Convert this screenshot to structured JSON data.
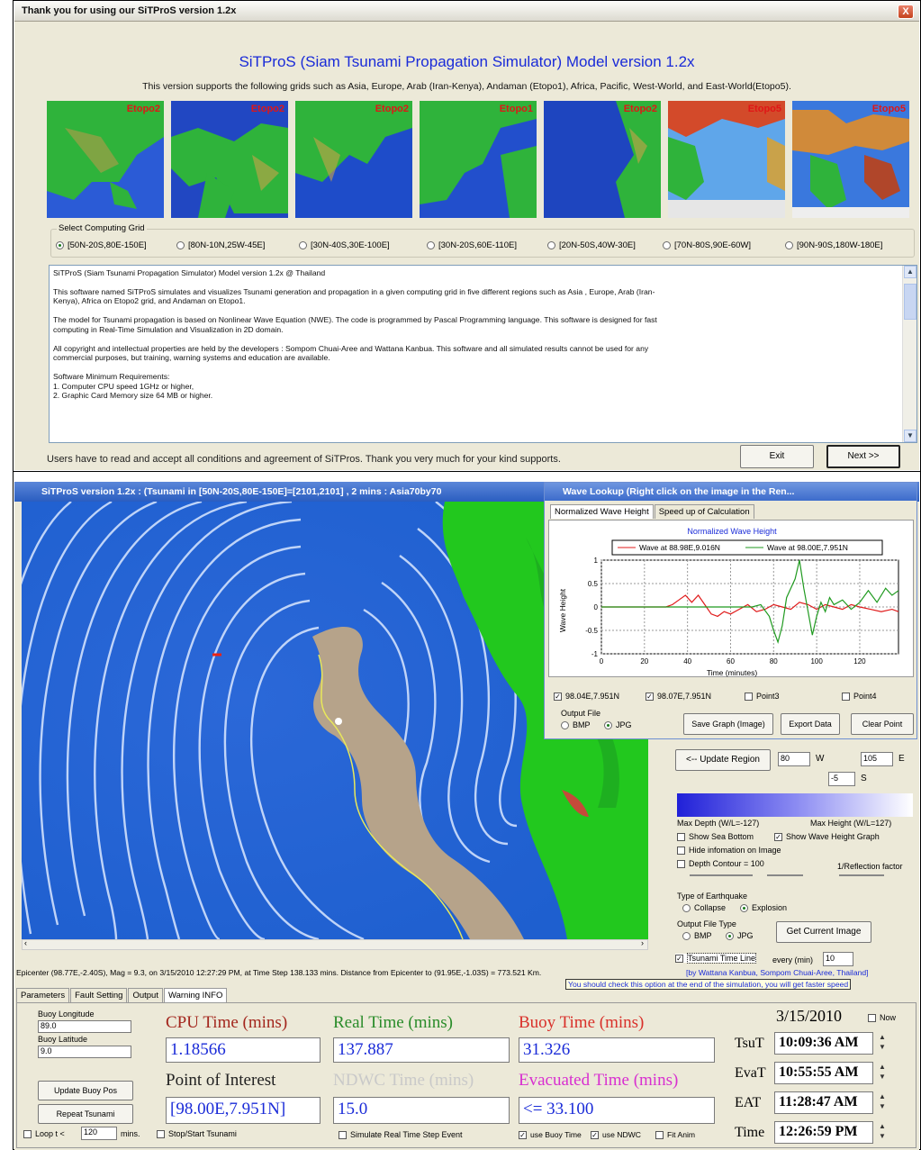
{
  "dialog": {
    "title": "Thank you for using our SiTProS version 1.2x",
    "close": "X",
    "heading": "SiTProS (Siam Tsunami Propagation Simulator) Model version 1.2x",
    "subheading": "This version supports the following grids such as Asia, Europe, Arab (Iran-Kenya), Andaman (Etopo1), Africa, Pacific, West-World, and East-World(Etopo5).",
    "thumbnails": [
      "Etopo2",
      "Etopo2",
      "Etopo2",
      "Etopo1",
      "Etopo2",
      "Etopo5",
      "Etopo5"
    ],
    "grid_group_label": "Select Computing Grid",
    "grids": [
      "[50N-20S,80E-150E]",
      "[80N-10N,25W-45E]",
      "[30N-40S,30E-100E]",
      "[30N-20S,60E-110E]",
      "[20N-50S,40W-30E]",
      "[70N-80S,90E-60W]",
      "[90N-90S,180W-180E]"
    ],
    "selected_grid": 0,
    "license_text": [
      "SiTProS (Siam Tsunami Propagation Simulator) Model version 1.2x @ Thailand",
      "This software named SiTProS simulates and visualizes Tsunami generation and propagation in a given computing grid in five different regions such as Asia , Europe, Arab (Iran-Kenya), Africa on Etopo2 grid, and Andaman on Etopo1.",
      "The model for Tsunami propagation is based on Nonlinear Wave Equation (NWE). The code is programmed by Pascal Programming language. This software is designed for fast computing in Real-Time Simulation and Visualization in 2D domain.",
      "All copyright and intellectual properties are held by the developers : Sompom Chuai-Aree and Wattana Kanbua. This software and all simulated results cannot be used for any commercial purposes, but training, warning systems and education are available.",
      "Software Minimum Requirements:\n1. Computer CPU speed 1GHz or higher,\n2. Graphic Card Memory size 64 MB or higher."
    ],
    "footer": "Users have to read and accept all conditions and agreement of SiTPros. Thank you very much for your kind supports.",
    "exit_label": "Exit",
    "next_label": "Next >>"
  },
  "app": {
    "title": "SiTProS version 1.2x : (Tsunami in [50N-20S,80E-150E]=[2101,2101] , 2 mins : Asia70by70",
    "status": "Epicenter (98.77E,-2.40S), Mag = 9.3, on 3/15/2010 12:27:29 PM, at Time Step 138.133 mins. Distance from Epicenter to (91.95E,-1.03S) = 773.521 Km.",
    "credits": "[by Wattana Kanbua, Sompom Chuai-Aree, Thailand]",
    "tip": "You should check this option at the end of the simulation, you will get faster speed",
    "tabs": [
      "Parameters",
      "Fault Setting",
      "Output",
      "Warning INFO"
    ],
    "buoy_longitude_label": "Buoy Longitude",
    "buoy_longitude": "89.0",
    "buoy_latitude_label": "Buoy Latitude",
    "buoy_latitude": "9.0",
    "update_buoy": "Update Buoy Pos",
    "repeat_tsunami": "Repeat Tsunami",
    "loop_label": "Loop t <",
    "loop_value": "120",
    "loop_unit": "mins.",
    "cpu_label": "CPU Time (mins)",
    "cpu_value": "1.18566",
    "real_label": "Real Time (mins)",
    "real_value": "137.887",
    "buoy_label": "Buoy Time (mins)",
    "buoy_value": "31.326",
    "poi_label": "Point of Interest",
    "poi_value": "[98.00E,7.951N]",
    "ndwc_label": "NDWC Time (mins)",
    "ndwc_value": "15.0",
    "evac_label": "Evacuated Time (mins)",
    "evac_value": "<= 33.100",
    "date": "3/15/2010",
    "now_label": "Now",
    "tsut_label": "TsuT",
    "tsut": "10:09:36 AM",
    "evat_label": "EvaT",
    "evat": "10:55:55 AM",
    "eat_label": "EAT",
    "eat": "11:28:47 AM",
    "time_label": "Time",
    "time": "12:26:59 PM",
    "stop_start": "Stop/Start Tsunami",
    "simulate_rt": "Simulate Real Time Step Event",
    "use_buoy": "use Buoy Time",
    "use_ndwc": "use NDWC",
    "fit_anim": "Fit Anim",
    "update_region": "<-- Update Region",
    "region_w_value": "80",
    "region_w": "W",
    "region_e_value": "105",
    "region_e": "E",
    "region_s_value": "-5",
    "region_s": "S",
    "max_depth": "Max Depth (W/L=-127)",
    "max_height": "Max Height (W/L=127)",
    "show_sea_bottom": "Show Sea Bottom",
    "show_wave_graph": "Show Wave Height Graph",
    "hide_info": "Hide infomation on Image",
    "depth_contour": "Depth Contour = 100",
    "reflection": "1/Reflection factor",
    "eq_type_label": "Type of Earthquake",
    "collapse": "Collapse",
    "explosion": "Explosion",
    "out_type_label": "Output File Type",
    "bmp": "BMP",
    "jpg": "JPG",
    "get_image": "Get Current Image",
    "time_line": "Tsunami Time Line",
    "every_min": "every (min)",
    "every_value": "10"
  },
  "lookup": {
    "title": "Wave Lookup (Right click on the image in the Ren...",
    "tabs": [
      "Normalized Wave Height",
      "Speed up of Calculation"
    ],
    "chart_title": "Normalized Wave Height",
    "legend1": "Wave at 88.98E,9.016N",
    "legend2": "Wave at 98.00E,7.951N",
    "ylabel": "Wave Height",
    "xlabel": "Time (minutes)",
    "points": [
      "98.04E,7.951N",
      "98.07E,7.951N",
      "Point3",
      "Point4"
    ],
    "output_label": "Output File",
    "bmp": "BMP",
    "jpg": "JPG",
    "save_graph": "Save Graph (Image)",
    "export": "Export Data",
    "clear": "Clear Point"
  },
  "chart_data": {
    "type": "line",
    "title": "Normalized Wave Height",
    "xlabel": "Time (minutes)",
    "ylabel": "Wave Height",
    "xlim": [
      0,
      138
    ],
    "ylim": [
      -1,
      1
    ],
    "x_ticks": [
      0,
      20,
      40,
      60,
      80,
      100,
      120
    ],
    "y_ticks": [
      "1",
      "0.5",
      "0",
      "-0.5",
      "-1"
    ],
    "grid": true,
    "legend_placement": "top",
    "series": [
      {
        "name": "Wave at 88.98E,9.016N",
        "color": "#e01b1b",
        "x": [
          0,
          30,
          33,
          36,
          39,
          42,
          45,
          48,
          51,
          54,
          57,
          60,
          64,
          68,
          72,
          76,
          80,
          84,
          88,
          92,
          96,
          100,
          104,
          108,
          112,
          116,
          120,
          125,
          130,
          135,
          138
        ],
        "y": [
          0,
          0,
          0.05,
          0.15,
          0.25,
          0.1,
          0.25,
          0.05,
          -0.15,
          -0.2,
          -0.1,
          -0.15,
          -0.05,
          0.05,
          -0.1,
          -0.05,
          0.05,
          0.0,
          -0.05,
          0.1,
          0.05,
          -0.05,
          0.05,
          0.0,
          -0.05,
          0.05,
          0.0,
          -0.05,
          -0.1,
          -0.05,
          -0.1
        ]
      },
      {
        "name": "Wave at 98.00E,7.951N",
        "color": "#1f9a1f",
        "x": [
          0,
          70,
          74,
          78,
          80,
          82,
          84,
          86,
          88,
          90,
          92,
          94,
          96,
          98,
          100,
          102,
          104,
          106,
          108,
          112,
          116,
          120,
          124,
          128,
          132,
          135,
          138
        ],
        "y": [
          0,
          0,
          0.05,
          -0.2,
          -0.5,
          -0.75,
          -0.4,
          0.2,
          0.4,
          0.6,
          1.0,
          0.4,
          -0.1,
          -0.6,
          -0.2,
          0.1,
          -0.1,
          0.2,
          0.05,
          0.15,
          -0.05,
          0.1,
          0.35,
          0.1,
          0.4,
          0.25,
          0.35
        ]
      }
    ]
  }
}
